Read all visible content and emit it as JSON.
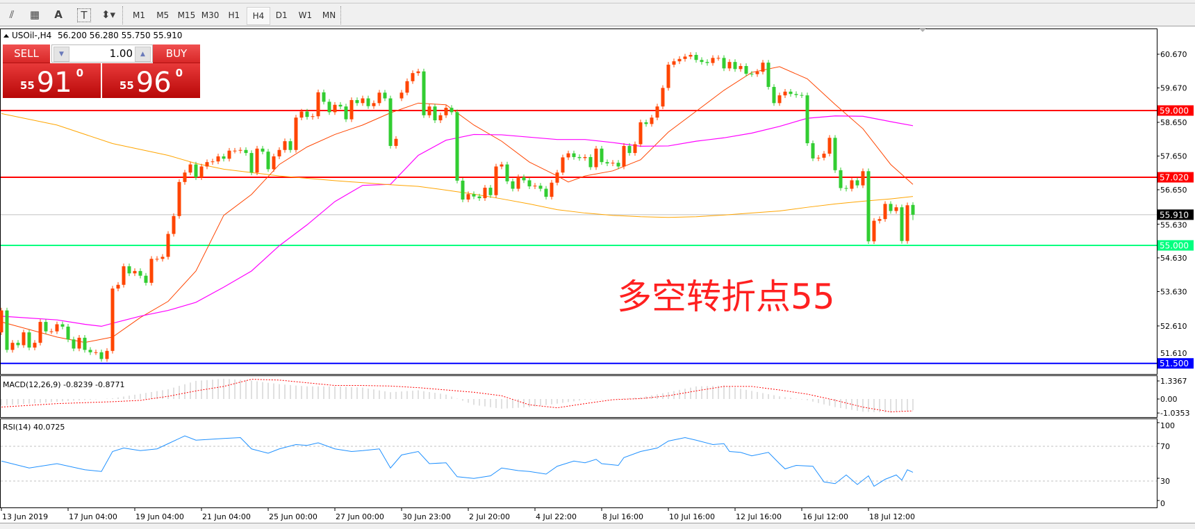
{
  "toolbar": {
    "tools": [
      {
        "icon": "fibonacci-fan-icon",
        "glyph": "⫽"
      },
      {
        "icon": "fibonacci-grid-icon",
        "glyph": "▦"
      },
      {
        "icon": "text-icon",
        "glyph": "A"
      },
      {
        "icon": "text-label-icon",
        "glyph": "T"
      },
      {
        "icon": "arrows-dropdown-icon",
        "glyph": "⬍▾"
      }
    ],
    "timeframes": [
      "M1",
      "M5",
      "M15",
      "M30",
      "H1",
      "H4",
      "D1",
      "W1",
      "MN"
    ],
    "active_timeframe": "H4"
  },
  "chart_header": {
    "symbol": "USOil-,H4",
    "ohlc": "56.200 56.280 55.750 55.910"
  },
  "trade_panel": {
    "sell_label": "SELL",
    "buy_label": "BUY",
    "lot": "1.00",
    "sell_price": {
      "prefix": "55",
      "main": "91",
      "sup": "0"
    },
    "buy_price": {
      "prefix": "55",
      "main": "96",
      "sup": "0"
    }
  },
  "annotation": {
    "text": "多空转折点55",
    "color": "#ff2020"
  },
  "colors": {
    "bull": "#ff4500",
    "bear": "#32cd32",
    "ma_fast": "#ff4500",
    "ma_mid": "#ff00ff",
    "ma_slow": "#ffa500",
    "rsi": "#1e90ff",
    "macd_hist": "#c0c0c0",
    "macd_signal": "#ff0000"
  },
  "chart_data": [
    {
      "type": "candlestick",
      "symbol": "USOil-",
      "timeframe": "H4",
      "ylim": [
        51.2,
        61.4
      ],
      "price_ticks": [
        "60.670",
        "59.670",
        "58.650",
        "57.650",
        "56.650",
        "55.630",
        "54.630",
        "53.630",
        "52.610",
        "51.610"
      ],
      "x_tick_labels": [
        "13 Jun 2019",
        "17 Jun 04:00",
        "19 Jun 04:00",
        "21 Jun 04:00",
        "25 Jun 00:00",
        "27 Jun 00:00",
        "30 Jun 23:00",
        "2 Jul 20:00",
        "4 Jul 22:00",
        "8 Jul 16:00",
        "10 Jul 16:00",
        "12 Jul 16:00",
        "16 Jul 12:00",
        "18 Jul 12:00"
      ],
      "close": [
        53.07,
        51.9,
        52.11,
        52.04,
        52.42,
        51.97,
        52.11,
        52.73,
        52.45,
        52.45,
        52.66,
        52.59,
        52.21,
        51.94,
        52.26,
        51.9,
        51.83,
        51.83,
        51.63,
        51.87,
        53.72,
        53.83,
        54.38,
        54.17,
        54.24,
        54.1,
        53.89,
        54.6,
        54.6,
        54.66,
        55.34,
        55.87,
        56.88,
        57.16,
        57.4,
        57.02,
        57.34,
        57.47,
        57.49,
        57.64,
        57.57,
        57.81,
        57.81,
        57.83,
        57.74,
        57.16,
        57.87,
        57.78,
        57.26,
        57.64,
        57.83,
        58.09,
        57.83,
        58.79,
        58.97,
        58.81,
        58.83,
        59.54,
        59.26,
        58.95,
        59.17,
        59.12,
        58.74,
        59.31,
        59.22,
        59.36,
        59.13,
        59.22,
        59.53,
        59.36,
        57.95,
        58.16,
        59.53,
        59.87,
        60.11,
        60.16,
        58.86,
        59.12,
        58.71,
        58.86,
        59.08,
        58.95,
        56.92,
        56.36,
        56.52,
        56.45,
        56.4,
        56.71,
        56.49,
        57.34,
        57.4,
        56.9,
        56.68,
        57.02,
        56.93,
        56.75,
        56.77,
        56.68,
        56.44,
        56.86,
        57.16,
        57.61,
        57.73,
        57.62,
        57.59,
        57.62,
        57.32,
        57.87,
        57.47,
        57.43,
        57.45,
        57.34,
        57.95,
        57.74,
        58.0,
        58.65,
        58.6,
        58.79,
        59.12,
        59.67,
        60.36,
        60.46,
        60.53,
        60.6,
        60.65,
        60.5,
        60.44,
        60.41,
        60.56,
        60.56,
        60.25,
        60.44,
        60.23,
        60.32,
        60.09,
        60.08,
        60.15,
        60.42,
        59.7,
        59.22,
        59.45,
        59.56,
        59.49,
        59.46,
        59.45,
        58.03,
        57.58,
        57.6,
        57.72,
        58.19,
        57.23,
        56.7,
        56.68,
        56.93,
        56.78,
        57.2,
        55.12,
        55.73,
        55.78,
        56.23,
        56.02,
        56.13,
        55.13,
        56.19,
        55.91
      ],
      "gap_opens": {
        "0": 52.42,
        "72": 59.36,
        "164": 56.2
      },
      "last_bar": {
        "open": 56.2,
        "high": 56.28,
        "low": 55.75,
        "close": 55.91
      },
      "moving_averages": [
        {
          "color": "#ff4500",
          "points": [
            [
              0,
              52.73
            ],
            [
              10,
              52.28
            ],
            [
              15,
              52.12
            ],
            [
              20,
              52.28
            ],
            [
              25,
              52.86
            ],
            [
              30,
              53.34
            ],
            [
              35,
              54.24
            ],
            [
              40,
              55.89
            ],
            [
              45,
              56.51
            ],
            [
              50,
              57.4
            ],
            [
              55,
              57.92
            ],
            [
              60,
              58.29
            ],
            [
              65,
              58.57
            ],
            [
              70,
              58.93
            ],
            [
              75,
              59.22
            ],
            [
              80,
              59.17
            ],
            [
              85,
              58.57
            ],
            [
              90,
              58.09
            ],
            [
              95,
              57.47
            ],
            [
              100,
              57.06
            ],
            [
              102,
              56.88
            ],
            [
              105,
              57.06
            ],
            [
              110,
              57.21
            ],
            [
              115,
              57.54
            ],
            [
              120,
              58.36
            ],
            [
              125,
              58.98
            ],
            [
              130,
              59.6
            ],
            [
              135,
              60.13
            ],
            [
              140,
              60.3
            ],
            [
              145,
              59.94
            ],
            [
              150,
              59.18
            ],
            [
              155,
              58.46
            ],
            [
              160,
              57.4
            ],
            [
              164,
              56.81
            ]
          ]
        },
        {
          "color": "#ff00ff",
          "points": [
            [
              0,
              52.9
            ],
            [
              10,
              52.79
            ],
            [
              15,
              52.66
            ],
            [
              18,
              52.6
            ],
            [
              20,
              52.69
            ],
            [
              25,
              52.9
            ],
            [
              30,
              53.07
            ],
            [
              35,
              53.31
            ],
            [
              40,
              53.76
            ],
            [
              45,
              54.24
            ],
            [
              50,
              54.99
            ],
            [
              55,
              55.61
            ],
            [
              60,
              56.3
            ],
            [
              65,
              56.78
            ],
            [
              70,
              56.81
            ],
            [
              75,
              57.67
            ],
            [
              80,
              58.12
            ],
            [
              85,
              58.29
            ],
            [
              90,
              58.28
            ],
            [
              95,
              58.21
            ],
            [
              100,
              58.14
            ],
            [
              105,
              58.14
            ],
            [
              110,
              58.05
            ],
            [
              115,
              57.94
            ],
            [
              120,
              57.95
            ],
            [
              125,
              58.09
            ],
            [
              130,
              58.19
            ],
            [
              135,
              58.33
            ],
            [
              140,
              58.53
            ],
            [
              145,
              58.77
            ],
            [
              150,
              58.84
            ],
            [
              155,
              58.83
            ],
            [
              160,
              58.67
            ],
            [
              164,
              58.55
            ]
          ]
        },
        {
          "color": "#ffa500",
          "points": [
            [
              0,
              58.91
            ],
            [
              10,
              58.57
            ],
            [
              20,
              58.02
            ],
            [
              30,
              57.67
            ],
            [
              35,
              57.43
            ],
            [
              40,
              57.26
            ],
            [
              45,
              57.16
            ],
            [
              50,
              57.06
            ],
            [
              55,
              56.99
            ],
            [
              60,
              56.92
            ],
            [
              65,
              56.86
            ],
            [
              69,
              56.81
            ],
            [
              75,
              56.75
            ],
            [
              80,
              56.64
            ],
            [
              85,
              56.52
            ],
            [
              90,
              56.38
            ],
            [
              95,
              56.23
            ],
            [
              100,
              56.06
            ],
            [
              105,
              55.96
            ],
            [
              110,
              55.89
            ],
            [
              115,
              55.85
            ],
            [
              120,
              55.83
            ],
            [
              125,
              55.85
            ],
            [
              130,
              55.9
            ],
            [
              135,
              55.96
            ],
            [
              140,
              56.02
            ],
            [
              145,
              56.13
            ],
            [
              150,
              56.23
            ],
            [
              155,
              56.31
            ],
            [
              160,
              56.38
            ],
            [
              164,
              56.45
            ]
          ]
        }
      ],
      "horizontal_lines": [
        {
          "price": 59.0,
          "label": "59.000",
          "color": "#ff0000",
          "label_text_color": "#ffffff"
        },
        {
          "price": 57.02,
          "label": "57.020",
          "color": "#ff0000",
          "label_text_color": "#ffffff"
        },
        {
          "price": 55.91,
          "label": "55.910",
          "color": "#c0c0c0",
          "label_bg": "#000000",
          "label_text_color": "#ffffff"
        },
        {
          "price": 55.0,
          "label": "55.000",
          "color": "#00ff7f",
          "label_text_color": "#ffffff"
        },
        {
          "price": 51.5,
          "label": "51.500",
          "color": "#0000ff",
          "label_text_color": "#ffffff"
        }
      ]
    },
    {
      "type": "bar",
      "title": "MACD(12,26,9) -0.8239 -0.8771",
      "y_ticks": [
        "1.3367",
        "0.00",
        "-1.0353"
      ],
      "ylim": [
        -1.0353,
        1.3367
      ],
      "histogram": [
        [
          0,
          -0.48
        ],
        [
          10,
          -0.2
        ],
        [
          20,
          0.05
        ],
        [
          25,
          0.38
        ],
        [
          30,
          0.72
        ],
        [
          35,
          1.34
        ],
        [
          40,
          1.5
        ],
        [
          45,
          1.36
        ],
        [
          50,
          1.1
        ],
        [
          55,
          0.93
        ],
        [
          60,
          0.93
        ],
        [
          65,
          0.84
        ],
        [
          70,
          0.5
        ],
        [
          75,
          0.64
        ],
        [
          80,
          0.33
        ],
        [
          85,
          -0.43
        ],
        [
          90,
          -0.72
        ],
        [
          95,
          -0.6
        ],
        [
          100,
          -0.34
        ],
        [
          105,
          -0.05
        ],
        [
          110,
          0.0
        ],
        [
          115,
          0.12
        ],
        [
          120,
          0.5
        ],
        [
          125,
          0.93
        ],
        [
          130,
          1.0
        ],
        [
          135,
          0.6
        ],
        [
          140,
          0.2
        ],
        [
          145,
          -0.09
        ],
        [
          150,
          -0.6
        ],
        [
          155,
          -0.94
        ],
        [
          160,
          -1.0
        ],
        [
          164,
          -0.82
        ]
      ],
      "signal": [
        [
          0,
          -0.6
        ],
        [
          10,
          -0.34
        ],
        [
          20,
          -0.2
        ],
        [
          25,
          -0.1
        ],
        [
          30,
          0.2
        ],
        [
          35,
          0.6
        ],
        [
          40,
          0.93
        ],
        [
          45,
          1.46
        ],
        [
          50,
          1.4
        ],
        [
          55,
          1.2
        ],
        [
          60,
          1.0
        ],
        [
          65,
          1.0
        ],
        [
          70,
          0.96
        ],
        [
          75,
          0.84
        ],
        [
          80,
          0.67
        ],
        [
          85,
          0.5
        ],
        [
          90,
          0.24
        ],
        [
          95,
          -0.43
        ],
        [
          100,
          -0.65
        ],
        [
          105,
          -0.34
        ],
        [
          110,
          -0.05
        ],
        [
          115,
          0.03
        ],
        [
          120,
          0.24
        ],
        [
          125,
          0.6
        ],
        [
          130,
          0.93
        ],
        [
          135,
          0.93
        ],
        [
          140,
          0.67
        ],
        [
          145,
          0.36
        ],
        [
          150,
          -0.09
        ],
        [
          155,
          -0.6
        ],
        [
          160,
          -0.95
        ],
        [
          164,
          -0.88
        ]
      ]
    },
    {
      "type": "line",
      "title": "RSI(14) 40.0725",
      "y_ticks": [
        "100",
        "70",
        "30",
        "0"
      ],
      "ylim": [
        0,
        100
      ],
      "levels": [
        70,
        30
      ],
      "points": [
        [
          0,
          53
        ],
        [
          5,
          45
        ],
        [
          10,
          50
        ],
        [
          15,
          43
        ],
        [
          18,
          41
        ],
        [
          20,
          64
        ],
        [
          22,
          68
        ],
        [
          25,
          65
        ],
        [
          28,
          67
        ],
        [
          30,
          73
        ],
        [
          33,
          82
        ],
        [
          35,
          77
        ],
        [
          40,
          79
        ],
        [
          43,
          80
        ],
        [
          45,
          67
        ],
        [
          48,
          62
        ],
        [
          50,
          67
        ],
        [
          53,
          72
        ],
        [
          55,
          71
        ],
        [
          57,
          74
        ],
        [
          60,
          67
        ],
        [
          63,
          64
        ],
        [
          65,
          65
        ],
        [
          68,
          67
        ],
        [
          70,
          45
        ],
        [
          72,
          60
        ],
        [
          75,
          64
        ],
        [
          77,
          50
        ],
        [
          80,
          51
        ],
        [
          82,
          35
        ],
        [
          85,
          33
        ],
        [
          88,
          36
        ],
        [
          90,
          45
        ],
        [
          93,
          42
        ],
        [
          95,
          41
        ],
        [
          98,
          38
        ],
        [
          100,
          47
        ],
        [
          103,
          53
        ],
        [
          105,
          51
        ],
        [
          107,
          55
        ],
        [
          108,
          50
        ],
        [
          111,
          48
        ],
        [
          112,
          57
        ],
        [
          115,
          64
        ],
        [
          118,
          68
        ],
        [
          120,
          76
        ],
        [
          123,
          80
        ],
        [
          125,
          77
        ],
        [
          128,
          72
        ],
        [
          130,
          73
        ],
        [
          131,
          64
        ],
        [
          133,
          63
        ],
        [
          135,
          59
        ],
        [
          138,
          63
        ],
        [
          140,
          50
        ],
        [
          141,
          44
        ],
        [
          143,
          48
        ],
        [
          146,
          47
        ],
        [
          148,
          29
        ],
        [
          150,
          27
        ],
        [
          152,
          37
        ],
        [
          154,
          26
        ],
        [
          156,
          36
        ],
        [
          157,
          24
        ],
        [
          159,
          32
        ],
        [
          161,
          37
        ],
        [
          162,
          31
        ],
        [
          163,
          43
        ],
        [
          164,
          40.07
        ]
      ]
    }
  ]
}
